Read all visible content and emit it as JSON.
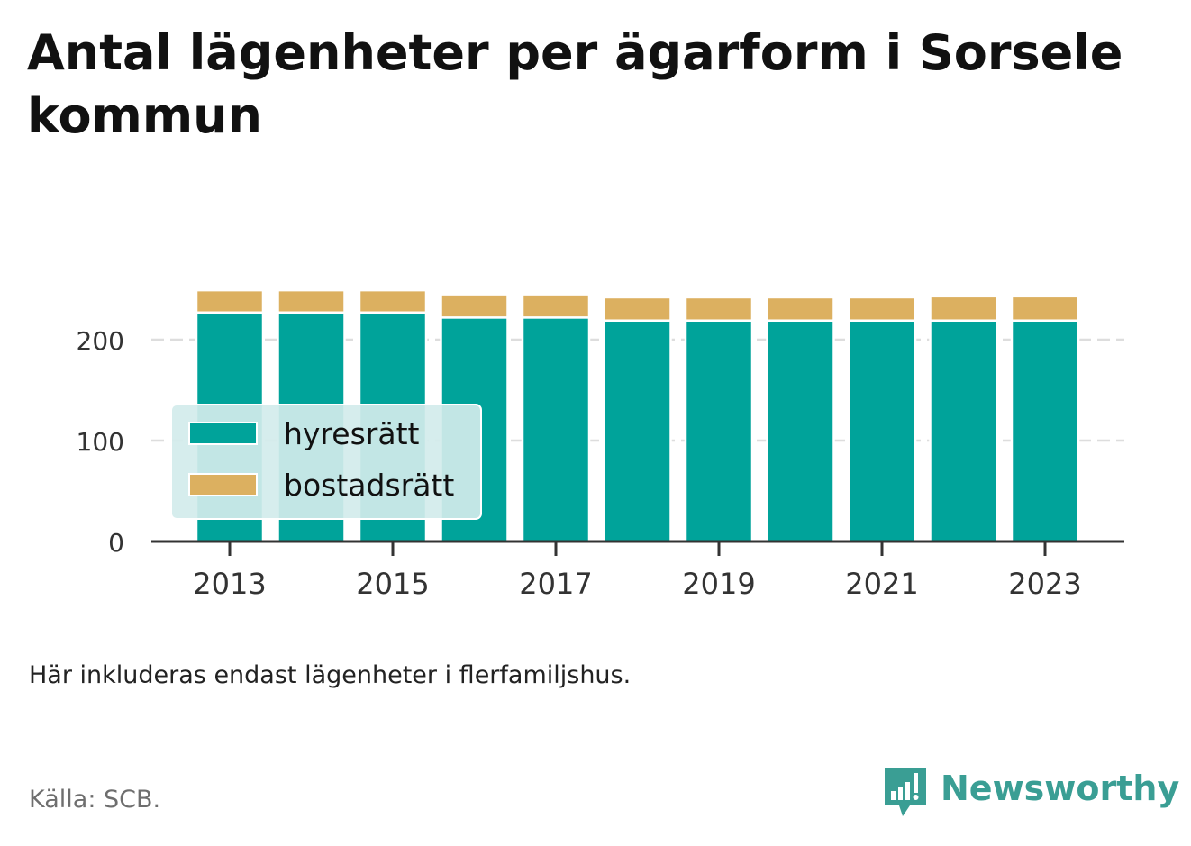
{
  "title": "Antal lägenheter per ägarform i Sorsele kommun",
  "note": "Här inkluderas endast lägenheter i flerfamiljshus.",
  "source": "Källa: SCB.",
  "brand": "Newsworthy",
  "colors": {
    "hyresratt": "#00a39a",
    "bostadsratt": "#dcb060",
    "axis": "#333333",
    "grid": "#dddddd",
    "brand": "#3a9e94",
    "legend_bg": "#d2ecec"
  },
  "chart_data": {
    "type": "bar",
    "stacked": true,
    "categories": [
      "2013",
      "2014",
      "2015",
      "2016",
      "2017",
      "2018",
      "2019",
      "2020",
      "2021",
      "2022",
      "2023"
    ],
    "x_tick_labels": [
      "2013",
      "2015",
      "2017",
      "2019",
      "2021",
      "2023"
    ],
    "series": [
      {
        "name": "hyresrätt",
        "values": [
          227,
          227,
          227,
          222,
          222,
          219,
          219,
          219,
          219,
          219,
          219
        ]
      },
      {
        "name": "bostadsrätt",
        "values": [
          22,
          22,
          22,
          23,
          23,
          23,
          23,
          23,
          23,
          24,
          24
        ]
      }
    ],
    "yticks": [
      0,
      100,
      200
    ],
    "ylim": [
      0,
      260
    ],
    "xlabel": "",
    "ylabel": "",
    "grid": true,
    "legend_position": "bottom-left"
  }
}
